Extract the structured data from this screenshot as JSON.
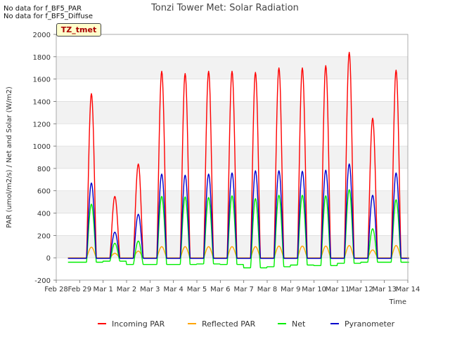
{
  "notices": [
    "No data for f_BF5_PAR",
    "No data for f_BF5_Diffuse"
  ],
  "badge": "TZ_tmet",
  "chart_data": {
    "type": "line",
    "title": "Tonzi Tower Met: Solar Radiation",
    "xlabel": "Time",
    "ylabel": "PAR (umol/m2/s) / Net and Solar (W/m2)",
    "ylim": [
      -200,
      2000
    ],
    "yticks": [
      -200,
      0,
      200,
      400,
      600,
      800,
      1000,
      1200,
      1400,
      1600,
      1800,
      2000
    ],
    "xlim": [
      0,
      15
    ],
    "xtick_labels": [
      "Feb 28",
      "Feb 29",
      "Mar 1",
      "Mar 2",
      "Mar 3",
      "Mar 4",
      "Mar 5",
      "Mar 6",
      "Mar 7",
      "Mar 8",
      "Mar 9",
      "Mar 10",
      "Mar 11",
      "Mar 12",
      "Mar 13",
      "Mar 14"
    ],
    "grid": true,
    "legend_position": "bottom",
    "day_peaks": {
      "days": [
        "Feb 29",
        "Mar 1",
        "Mar 2",
        "Mar 3",
        "Mar 4",
        "Mar 5",
        "Mar 6",
        "Mar 7",
        "Mar 8",
        "Mar 9",
        "Mar 10",
        "Mar 11",
        "Mar 12",
        "Mar 13"
      ]
    },
    "series": [
      {
        "name": "Incoming PAR",
        "color": "#ff0000",
        "peaks": [
          1470,
          550,
          840,
          1670,
          1650,
          1670,
          1670,
          1660,
          1700,
          1700,
          1720,
          1840,
          1250,
          1680
        ],
        "night": [
          0,
          0,
          0,
          0,
          0,
          0,
          0,
          0,
          0,
          0,
          0,
          0,
          0,
          0
        ]
      },
      {
        "name": "Reflected PAR",
        "color": "#ffa500",
        "peaks": [
          95,
          40,
          60,
          100,
          100,
          100,
          100,
          100,
          105,
          105,
          105,
          110,
          70,
          110
        ],
        "night": [
          0,
          0,
          0,
          0,
          0,
          0,
          0,
          0,
          0,
          0,
          0,
          0,
          0,
          0
        ]
      },
      {
        "name": "Net",
        "color": "#00ee00",
        "peaks": [
          480,
          130,
          150,
          550,
          545,
          540,
          555,
          530,
          560,
          560,
          555,
          610,
          260,
          520
        ],
        "night": [
          -40,
          -30,
          -60,
          -60,
          -60,
          -55,
          -60,
          -90,
          -80,
          -65,
          -70,
          -50,
          -40,
          -40
        ]
      },
      {
        "name": "Pyranometer",
        "color": "#0000cc",
        "peaks": [
          670,
          230,
          390,
          750,
          740,
          750,
          760,
          780,
          780,
          775,
          785,
          840,
          560,
          760
        ],
        "night": [
          -5,
          -5,
          -5,
          -5,
          -5,
          -5,
          -5,
          -5,
          -5,
          -5,
          -5,
          -5,
          -5,
          -5
        ]
      }
    ]
  }
}
